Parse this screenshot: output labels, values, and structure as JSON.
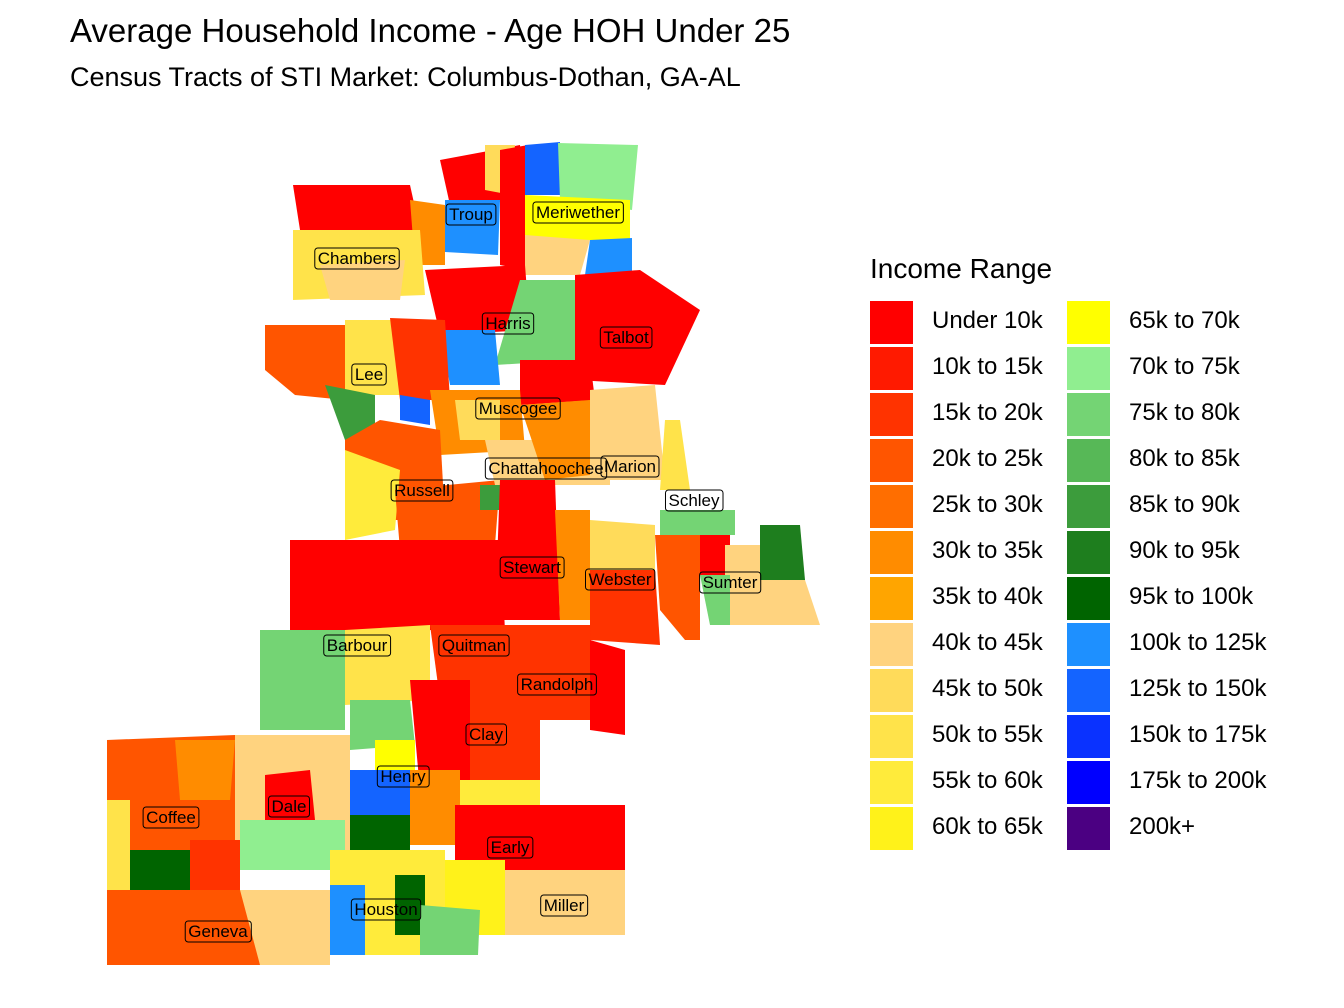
{
  "title": "Average Household Income - Age HOH Under 25",
  "subtitle": "Census Tracts of STI Market: Columbus-Dothan,  GA-AL",
  "legend": {
    "title": "Income Range",
    "items": [
      {
        "label": "Under 10k",
        "color": "#FF0000"
      },
      {
        "label": "10k to 15k",
        "color": "#FF1A00"
      },
      {
        "label": "15k to 20k",
        "color": "#FF3300"
      },
      {
        "label": "20k to 25k",
        "color": "#FF5500"
      },
      {
        "label": "25k to 30k",
        "color": "#FF6E00"
      },
      {
        "label": "30k to 35k",
        "color": "#FF8C00"
      },
      {
        "label": "35k to 40k",
        "color": "#FFA500"
      },
      {
        "label": "40k to 45k",
        "color": "#FFD37F"
      },
      {
        "label": "45k to 50k",
        "color": "#FFDB5A"
      },
      {
        "label": "50k to 55k",
        "color": "#FFE34A"
      },
      {
        "label": "55k to 60k",
        "color": "#FFEB3B"
      },
      {
        "label": "60k to 65k",
        "color": "#FFF21A"
      },
      {
        "label": "65k to 70k",
        "color": "#FFFF00"
      },
      {
        "label": "70k to 75k",
        "color": "#90EE90"
      },
      {
        "label": "75k to 80k",
        "color": "#74D474"
      },
      {
        "label": "80k to 85k",
        "color": "#57B857"
      },
      {
        "label": "85k to 90k",
        "color": "#3C9C3C"
      },
      {
        "label": "90k to 95k",
        "color": "#1E7E1E"
      },
      {
        "label": "95k to 100k",
        "color": "#006400"
      },
      {
        "label": "100k to 125k",
        "color": "#1E90FF"
      },
      {
        "label": "125k to 150k",
        "color": "#1464FF"
      },
      {
        "label": "150k to 175k",
        "color": "#0A32FF"
      },
      {
        "label": "175k to 200k",
        "color": "#0000FF"
      },
      {
        "label": "200k+",
        "color": "#4B0082"
      }
    ]
  },
  "counties": [
    "Troup",
    "Meriwether",
    "Chambers",
    "Harris",
    "Talbot",
    "Lee",
    "Muscogee",
    "Chattahoochee",
    "Marion",
    "Russell",
    "Schley",
    "Stewart",
    "Webster",
    "Sumter",
    "Barbour",
    "Quitman",
    "Randolph",
    "Clay",
    "Henry",
    "Dale",
    "Coffee",
    "Early",
    "Houston",
    "Miller",
    "Geneva"
  ]
}
